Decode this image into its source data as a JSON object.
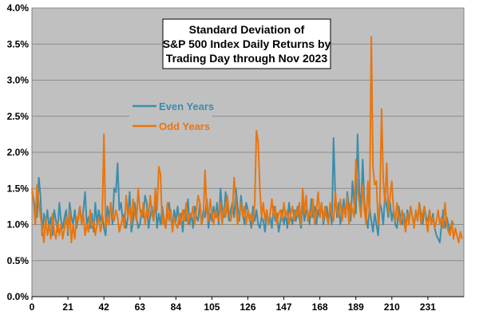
{
  "chart_data": {
    "type": "line",
    "title_lines": [
      "Standard Deviation of",
      "S&P 500 Index Daily Returns by",
      "Trading Day through Nov 2023"
    ],
    "x_ticks": [
      0,
      21,
      42,
      63,
      84,
      105,
      126,
      147,
      168,
      189,
      210,
      231
    ],
    "y_ticks": [
      "0.0%",
      "0.5%",
      "1.0%",
      "1.5%",
      "2.0%",
      "2.5%",
      "3.0%",
      "3.5%",
      "4.0%"
    ],
    "xlim": [
      0,
      252
    ],
    "ylim": [
      0,
      4
    ],
    "grid": true,
    "legend_position": "upper-left",
    "plot_background": "#c0c0c0",
    "series": [
      {
        "name": "Even Years",
        "color": "#3c8dac",
        "values": [
          1.45,
          1.35,
          1.2,
          1.1,
          1.65,
          1.4,
          0.85,
          1.15,
          1.0,
          1.2,
          0.95,
          1.1,
          0.85,
          1.2,
          1.05,
          0.9,
          1.3,
          1.05,
          0.95,
          1.1,
          1.2,
          0.85,
          1.3,
          1.1,
          1.0,
          1.2,
          0.95,
          1.1,
          1.25,
          1.0,
          1.2,
          1.45,
          1.0,
          1.1,
          0.95,
          1.15,
          0.9,
          1.3,
          1.0,
          1.2,
          1.05,
          1.15,
          0.95,
          0.85,
          1.25,
          1.1,
          1.3,
          1.0,
          1.5,
          1.45,
          1.85,
          1.2,
          1.3,
          1.05,
          1.15,
          0.95,
          1.1,
          1.45,
          0.9,
          1.05,
          1.3,
          1.1,
          0.95,
          1.0,
          1.2,
          1.1,
          1.4,
          1.3,
          0.95,
          1.1,
          1.25,
          1.05,
          1.35,
          0.95,
          1.15,
          1.0,
          1.25,
          1.05,
          0.95,
          1.15,
          1.3,
          1.1,
          0.95,
          1.2,
          1.05,
          1.25,
          1.0,
          1.15,
          0.9,
          1.2,
          1.05,
          1.35,
          1.0,
          1.15,
          0.95,
          1.25,
          1.1,
          1.05,
          1.3,
          1.0,
          1.2,
          1.1,
          1.35,
          0.95,
          1.15,
          1.05,
          1.25,
          1.1,
          1.3,
          1.0,
          1.5,
          1.2,
          1.1,
          1.45,
          1.25,
          1.05,
          1.2,
          1.3,
          1.1,
          1.5,
          1.25,
          1.05,
          1.4,
          1.15,
          1.0,
          1.3,
          1.2,
          1.1,
          0.95,
          1.25,
          1.05,
          1.2,
          1.0,
          0.95,
          1.1,
          1.05,
          0.9,
          1.2,
          1.0,
          1.1,
          0.95,
          1.25,
          1.05,
          1.15,
          0.9,
          1.05,
          1.2,
          1.0,
          1.15,
          0.95,
          1.3,
          1.1,
          1.0,
          1.2,
          1.05,
          1.25,
          1.1,
          0.95,
          1.3,
          1.05,
          1.2,
          1.15,
          1.0,
          1.35,
          1.1,
          1.25,
          1.0,
          1.2,
          1.1,
          1.3,
          1.0,
          1.15,
          1.25,
          1.05,
          1.2,
          1.0,
          2.2,
          1.4,
          1.1,
          1.3,
          1.0,
          1.2,
          1.35,
          1.1,
          1.45,
          1.25,
          1.05,
          1.6,
          1.3,
          1.15,
          2.25,
          1.5,
          1.2,
          1.9,
          1.3,
          1.1,
          0.95,
          1.25,
          1.05,
          0.9,
          1.15,
          1.0,
          0.85,
          1.3,
          1.2,
          1.0,
          1.4,
          1.25,
          1.1,
          1.3,
          1.05,
          1.2,
          1.0,
          0.95,
          1.25,
          1.1,
          1.0,
          1.15,
          0.95,
          1.2,
          1.05,
          1.25,
          1.1,
          1.0,
          1.2,
          1.05,
          1.3,
          1.15,
          1.0,
          1.25,
          1.1,
          1.05,
          1.2,
          1.0,
          1.15,
          0.95,
          0.85,
          0.8,
          0.75,
          1.0,
          1.2,
          0.95,
          1.1,
          1.0,
          0.9,
          1.05,
          1.0
        ]
      },
      {
        "name": "Odd Years",
        "color": "#e8760f",
        "values": [
          1.5,
          1.3,
          1.0,
          1.55,
          1.3,
          1.1,
          0.95,
          0.75,
          1.1,
          0.85,
          1.0,
          0.8,
          1.15,
          0.9,
          0.8,
          1.05,
          0.85,
          1.0,
          0.8,
          0.95,
          1.1,
          0.9,
          1.2,
          0.75,
          1.0,
          0.8,
          1.1,
          1.05,
          1.25,
          1.0,
          1.15,
          0.85,
          1.0,
          0.9,
          1.2,
          0.95,
          1.05,
          0.85,
          1.0,
          1.1,
          0.9,
          1.05,
          2.25,
          0.95,
          1.1,
          1.0,
          1.3,
          1.1,
          1.05,
          1.2,
          1.1,
          0.9,
          1.0,
          1.1,
          0.95,
          1.4,
          1.1,
          1.25,
          1.0,
          1.35,
          1.15,
          1.05,
          1.5,
          1.2,
          1.1,
          1.3,
          1.0,
          1.2,
          1.1,
          1.4,
          1.15,
          1.05,
          1.5,
          1.2,
          1.8,
          1.7,
          1.0,
          1.1,
          0.95,
          1.3,
          1.05,
          1.2,
          0.9,
          1.1,
          1.0,
          0.95,
          1.15,
          1.0,
          1.2,
          1.05,
          1.3,
          1.0,
          1.15,
          1.1,
          1.25,
          1.0,
          1.2,
          1.4,
          1.3,
          1.0,
          1.1,
          1.75,
          1.2,
          1.05,
          1.35,
          1.15,
          1.0,
          1.2,
          1.1,
          1.05,
          1.3,
          1.0,
          1.25,
          1.1,
          1.4,
          1.15,
          1.05,
          1.2,
          1.65,
          1.3,
          1.0,
          1.15,
          1.3,
          1.1,
          1.25,
          1.0,
          1.2,
          1.05,
          1.15,
          1.0,
          1.3,
          2.3,
          2.15,
          1.5,
          1.1,
          1.3,
          1.05,
          1.2,
          1.0,
          1.15,
          1.35,
          1.1,
          1.25,
          1.0,
          1.15,
          1.2,
          1.05,
          1.3,
          1.1,
          1.2,
          1.0,
          1.15,
          1.25,
          1.05,
          1.2,
          1.1,
          1.3,
          1.0,
          1.5,
          1.15,
          1.4,
          1.05,
          1.2,
          1.1,
          1.35,
          1.0,
          1.2,
          1.45,
          1.1,
          1.3,
          1.05,
          1.25,
          1.1,
          1.0,
          1.3,
          1.15,
          1.05,
          1.45,
          1.2,
          1.1,
          1.35,
          1.05,
          1.25,
          1.1,
          1.4,
          1.0,
          1.3,
          1.2,
          1.1,
          1.9,
          1.5,
          1.3,
          1.1,
          1.55,
          1.2,
          1.0,
          1.6,
          1.1,
          3.6,
          1.8,
          1.55,
          1.6,
          1.0,
          1.3,
          2.6,
          1.6,
          1.3,
          1.85,
          1.15,
          1.4,
          1.6,
          1.2,
          1.05,
          1.3,
          1.1,
          1.0,
          1.2,
          1.05,
          0.9,
          1.15,
          1.0,
          1.25,
          1.1,
          0.95,
          1.2,
          1.05,
          1.3,
          1.0,
          1.15,
          1.25,
          1.05,
          0.9,
          1.2,
          1.0,
          1.1,
          0.95,
          1.05,
          1.2,
          1.0,
          1.1,
          0.95,
          1.3,
          1.0,
          0.9,
          0.85,
          1.05,
          0.8,
          0.95,
          0.85,
          0.75,
          0.9,
          0.8
        ]
      }
    ]
  }
}
